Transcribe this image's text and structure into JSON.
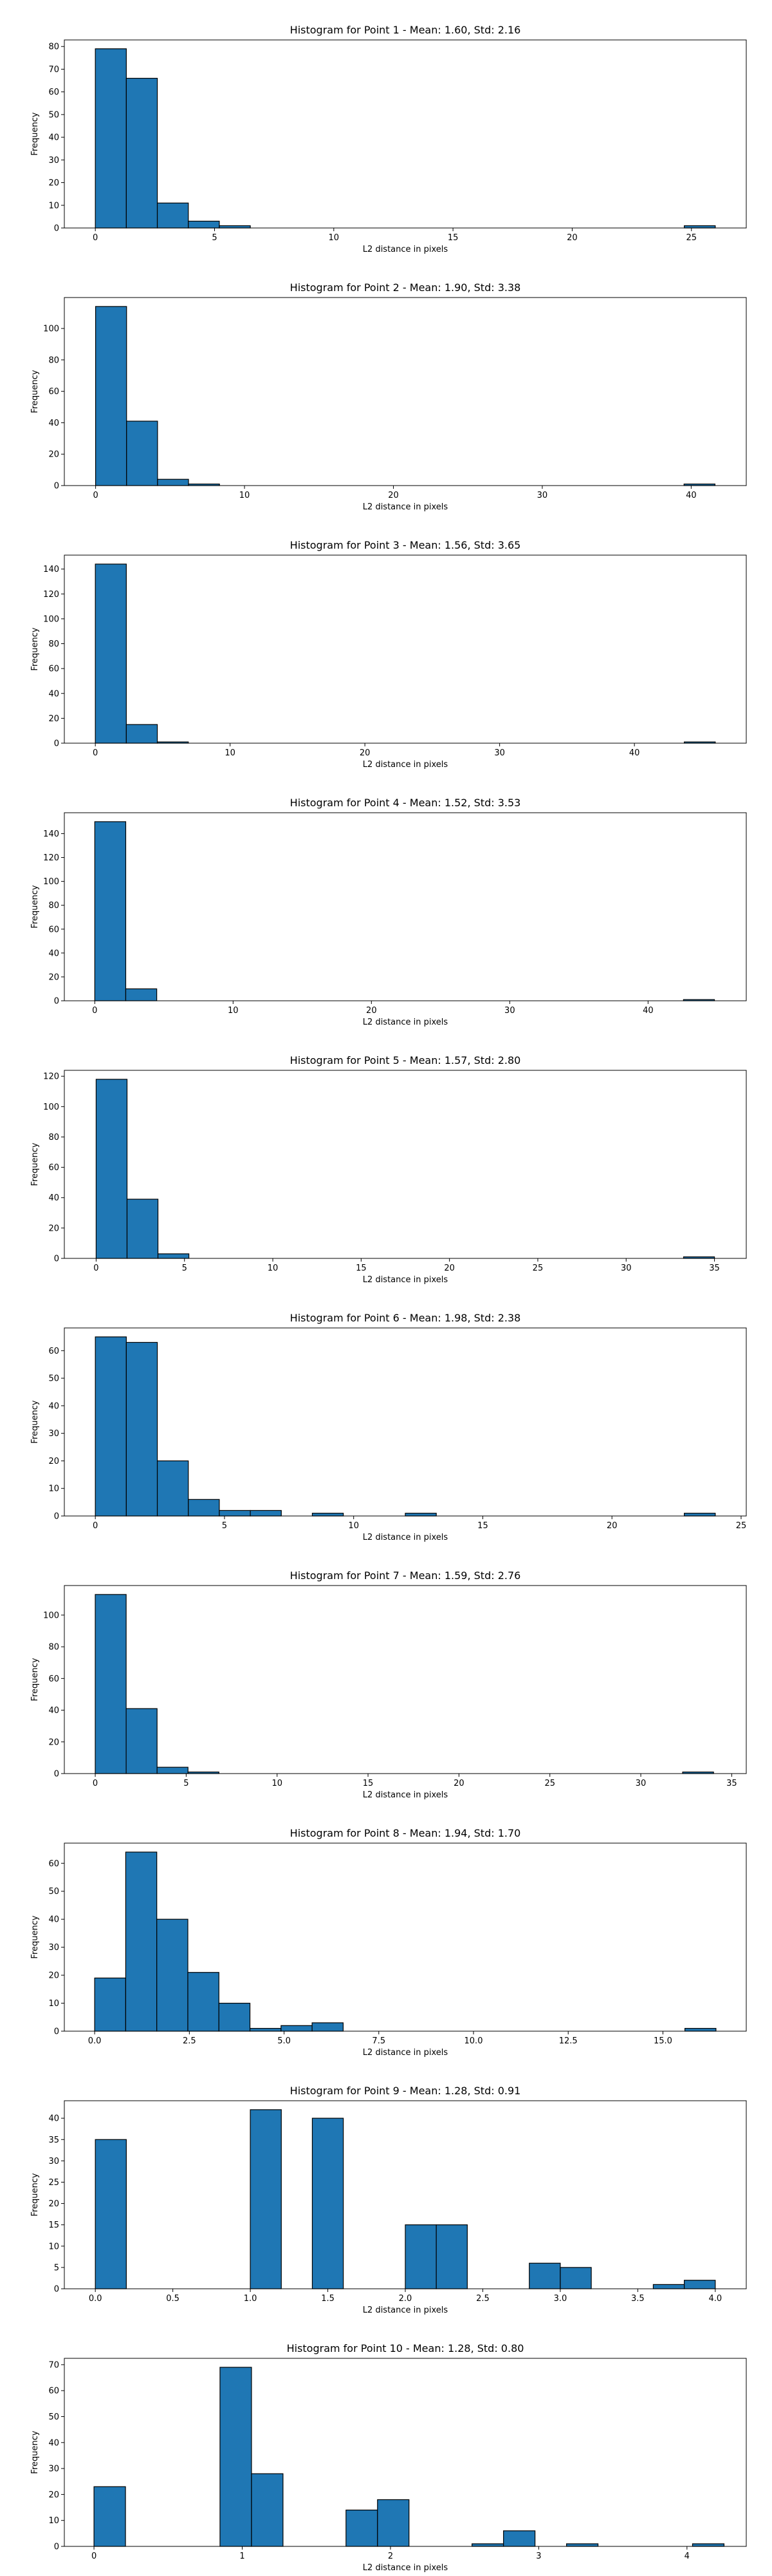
{
  "figure": {
    "bar_color": "#1f77b4",
    "edge_color": "#000000"
  },
  "chart_data": [
    {
      "type": "bar",
      "title": "Histogram for Point 1 - Mean: 1.60, Std: 2.16",
      "xlabel": "L2 distance in pixels",
      "ylabel": "Frequency",
      "xlim": [
        -1.3,
        27.3
      ],
      "ylim": [
        0,
        82.9
      ],
      "xticks": [
        0,
        5,
        10,
        15,
        20,
        25
      ],
      "yticks": [
        0,
        10,
        20,
        30,
        40,
        50,
        60,
        70,
        80
      ],
      "bin_start": 0.0,
      "bin_width": 1.3,
      "values": [
        79,
        66,
        11,
        3,
        1,
        0,
        0,
        0,
        0,
        0,
        0,
        0,
        0,
        0,
        0,
        0,
        0,
        0,
        0,
        1
      ],
      "grid": false
    },
    {
      "type": "bar",
      "title": "Histogram for Point 2 - Mean: 1.90, Std: 3.38",
      "xlabel": "L2 distance in pixels",
      "ylabel": "Frequency",
      "xlim": [
        -2.1,
        43.7
      ],
      "ylim": [
        0,
        119.7
      ],
      "xticks": [
        0,
        10,
        20,
        30,
        40
      ],
      "yticks": [
        0,
        20,
        40,
        60,
        80,
        100
      ],
      "bin_start": 0.0,
      "bin_width": 2.08,
      "values": [
        114,
        41,
        4,
        1,
        0,
        0,
        0,
        0,
        0,
        0,
        0,
        0,
        0,
        0,
        0,
        0,
        0,
        0,
        0,
        1
      ],
      "grid": false
    },
    {
      "type": "bar",
      "title": "Histogram for Point 3 - Mean: 1.56, Std: 3.65",
      "xlabel": "L2 distance in pixels",
      "ylabel": "Frequency",
      "xlim": [
        -2.3,
        48.3
      ],
      "ylim": [
        0,
        151.2
      ],
      "xticks": [
        0,
        10,
        20,
        30,
        40
      ],
      "yticks": [
        0,
        20,
        40,
        60,
        80,
        100,
        120,
        140
      ],
      "bin_start": 0.0,
      "bin_width": 2.3,
      "values": [
        144,
        15,
        1,
        0,
        0,
        0,
        0,
        0,
        0,
        0,
        0,
        0,
        0,
        0,
        0,
        0,
        0,
        0,
        0,
        1
      ],
      "grid": false
    },
    {
      "type": "bar",
      "title": "Histogram for Point 4 - Mean: 1.52, Std: 3.53",
      "xlabel": "L2 distance in pixels",
      "ylabel": "Frequency",
      "xlim": [
        -2.2,
        47.1
      ],
      "ylim": [
        0,
        157.5
      ],
      "xticks": [
        0,
        10,
        20,
        30,
        40
      ],
      "yticks": [
        0,
        20,
        40,
        60,
        80,
        100,
        120,
        140
      ],
      "bin_start": 0.0,
      "bin_width": 2.24,
      "values": [
        150,
        10,
        0,
        0,
        0,
        0,
        0,
        0,
        0,
        0,
        0,
        0,
        0,
        0,
        0,
        0,
        0,
        0,
        0,
        1
      ],
      "grid": false
    },
    {
      "type": "bar",
      "title": "Histogram for Point 5 - Mean: 1.57, Std: 2.80",
      "xlabel": "L2 distance in pixels",
      "ylabel": "Frequency",
      "xlim": [
        -1.8,
        36.8
      ],
      "ylim": [
        0,
        123.9
      ],
      "xticks": [
        0,
        5,
        10,
        15,
        20,
        25,
        30,
        35
      ],
      "yticks": [
        0,
        20,
        40,
        60,
        80,
        100,
        120
      ],
      "bin_start": 0.0,
      "bin_width": 1.75,
      "values": [
        118,
        39,
        3,
        0,
        0,
        0,
        0,
        0,
        0,
        0,
        0,
        0,
        0,
        0,
        0,
        0,
        0,
        0,
        0,
        1
      ],
      "grid": false
    },
    {
      "type": "bar",
      "title": "Histogram for Point 6 - Mean: 1.98, Std: 2.38",
      "xlabel": "L2 distance in pixels",
      "ylabel": "Frequency",
      "xlim": [
        -1.2,
        25.2
      ],
      "ylim": [
        0,
        68.25
      ],
      "xticks": [
        0,
        5,
        10,
        15,
        20,
        25
      ],
      "yticks": [
        0,
        10,
        20,
        30,
        40,
        50,
        60
      ],
      "bin_start": 0.0,
      "bin_width": 1.2,
      "values": [
        65,
        63,
        20,
        6,
        2,
        2,
        0,
        1,
        0,
        0,
        1,
        0,
        0,
        0,
        0,
        0,
        0,
        0,
        0,
        1
      ],
      "grid": false
    },
    {
      "type": "bar",
      "title": "Histogram for Point 7 - Mean: 1.59, Std: 2.76",
      "xlabel": "L2 distance in pixels",
      "ylabel": "Frequency",
      "xlim": [
        -1.7,
        35.8
      ],
      "ylim": [
        0,
        118.65
      ],
      "xticks": [
        0,
        5,
        10,
        15,
        20,
        25,
        30,
        35
      ],
      "yticks": [
        0,
        20,
        40,
        60,
        80,
        100
      ],
      "bin_start": 0.0,
      "bin_width": 1.7,
      "values": [
        113,
        41,
        4,
        1,
        0,
        0,
        0,
        0,
        0,
        0,
        0,
        0,
        0,
        0,
        0,
        0,
        0,
        0,
        0,
        1
      ],
      "grid": false
    },
    {
      "type": "bar",
      "title": "Histogram for Point 8 - Mean: 1.94, Std: 1.70",
      "xlabel": "L2 distance in pixels",
      "ylabel": "Frequency",
      "xlim": [
        -0.8,
        17.2
      ],
      "ylim": [
        0,
        67.2
      ],
      "xticks": [
        0.0,
        2.5,
        5.0,
        7.5,
        10.0,
        12.5,
        15.0
      ],
      "xtick_labels": [
        "0.0",
        "2.5",
        "5.0",
        "7.5",
        "10.0",
        "12.5",
        "15.0"
      ],
      "yticks": [
        0,
        10,
        20,
        30,
        40,
        50,
        60
      ],
      "bin_start": 0.0,
      "bin_width": 0.82,
      "values": [
        19,
        64,
        40,
        21,
        10,
        1,
        2,
        3,
        0,
        0,
        0,
        0,
        0,
        0,
        0,
        0,
        0,
        0,
        0,
        1
      ],
      "grid": false
    },
    {
      "type": "bar",
      "title": "Histogram for Point 9 - Mean: 1.28, Std: 0.91",
      "xlabel": "L2 distance in pixels",
      "ylabel": "Frequency",
      "xlim": [
        -0.2,
        4.2
      ],
      "ylim": [
        0,
        44.1
      ],
      "xticks": [
        0.0,
        0.5,
        1.0,
        1.5,
        2.0,
        2.5,
        3.0,
        3.5,
        4.0
      ],
      "xtick_labels": [
        "0.0",
        "0.5",
        "1.0",
        "1.5",
        "2.0",
        "2.5",
        "3.0",
        "3.5",
        "4.0"
      ],
      "yticks": [
        0,
        5,
        10,
        15,
        20,
        25,
        30,
        35,
        40
      ],
      "bin_start": 0.0,
      "bin_width": 0.2,
      "values": [
        35,
        0,
        0,
        0,
        0,
        42,
        0,
        40,
        0,
        0,
        15,
        15,
        0,
        0,
        6,
        5,
        0,
        0,
        1,
        2
      ],
      "grid": false
    },
    {
      "type": "bar",
      "title": "Histogram for Point 10 - Mean: 1.28, Std: 0.80",
      "xlabel": "L2 distance in pixels",
      "ylabel": "Frequency",
      "xlim": [
        -0.2,
        4.4
      ],
      "ylim": [
        0,
        72.45
      ],
      "xticks": [
        0,
        1,
        2,
        3,
        4
      ],
      "yticks": [
        0,
        10,
        20,
        30,
        40,
        50,
        60,
        70
      ],
      "bin_start": 0.0,
      "bin_width": 0.2125,
      "values": [
        23,
        0,
        0,
        0,
        69,
        28,
        0,
        0,
        14,
        18,
        0,
        0,
        1,
        6,
        0,
        1,
        0,
        0,
        0,
        1
      ],
      "grid": false
    }
  ]
}
